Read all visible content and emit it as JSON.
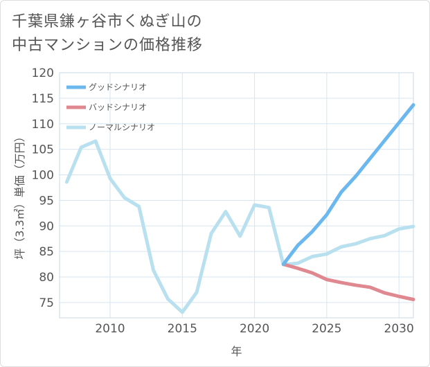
{
  "title_lines": [
    "千葉県鎌ヶ谷市くぬぎ山の",
    "中古マンションの価格推移"
  ],
  "chart_data": {
    "type": "line",
    "xlabel": "年",
    "ylabel": "坪（3.3㎡）単価（万円）",
    "xlim": [
      2006.5,
      2031
    ],
    "ylim": [
      72,
      120
    ],
    "x_ticks": [
      2010,
      2015,
      2020,
      2025,
      2030
    ],
    "y_ticks": [
      75,
      80,
      85,
      90,
      95,
      100,
      105,
      110,
      115,
      120
    ],
    "grid": true,
    "legend_position": "top-left",
    "series": [
      {
        "name": "グッドシナリオ",
        "color": "#6bb8ee",
        "x": [
          2022,
          2023,
          2024,
          2025,
          2026,
          2027,
          2028,
          2029,
          2030,
          2031
        ],
        "y": [
          82.5,
          86.2,
          88.9,
          92.2,
          96.6,
          99.7,
          103.2,
          106.7,
          110.2,
          113.7
        ]
      },
      {
        "name": "バッドシナリオ",
        "color": "#e0888f",
        "x": [
          2022,
          2023,
          2024,
          2025,
          2026,
          2027,
          2028,
          2029,
          2030,
          2031
        ],
        "y": [
          82.5,
          81.7,
          80.8,
          79.5,
          78.9,
          78.4,
          78.0,
          76.9,
          76.2,
          75.6
        ]
      },
      {
        "name": "ノーマルシナリオ",
        "color": "#b9e0ef",
        "x": [
          2007,
          2008,
          2009,
          2010,
          2011,
          2012,
          2013,
          2014,
          2015,
          2016,
          2017,
          2018,
          2019,
          2020,
          2021,
          2022,
          2023,
          2024,
          2025,
          2026,
          2027,
          2028,
          2029,
          2030,
          2031
        ],
        "y": [
          98.6,
          105.4,
          106.6,
          99.3,
          95.5,
          93.8,
          81.3,
          75.7,
          73.1,
          77.0,
          88.5,
          92.8,
          88.0,
          94.1,
          93.6,
          82.4,
          82.7,
          84.0,
          84.5,
          85.9,
          86.5,
          87.5,
          88.1,
          89.4,
          89.9
        ]
      }
    ]
  }
}
